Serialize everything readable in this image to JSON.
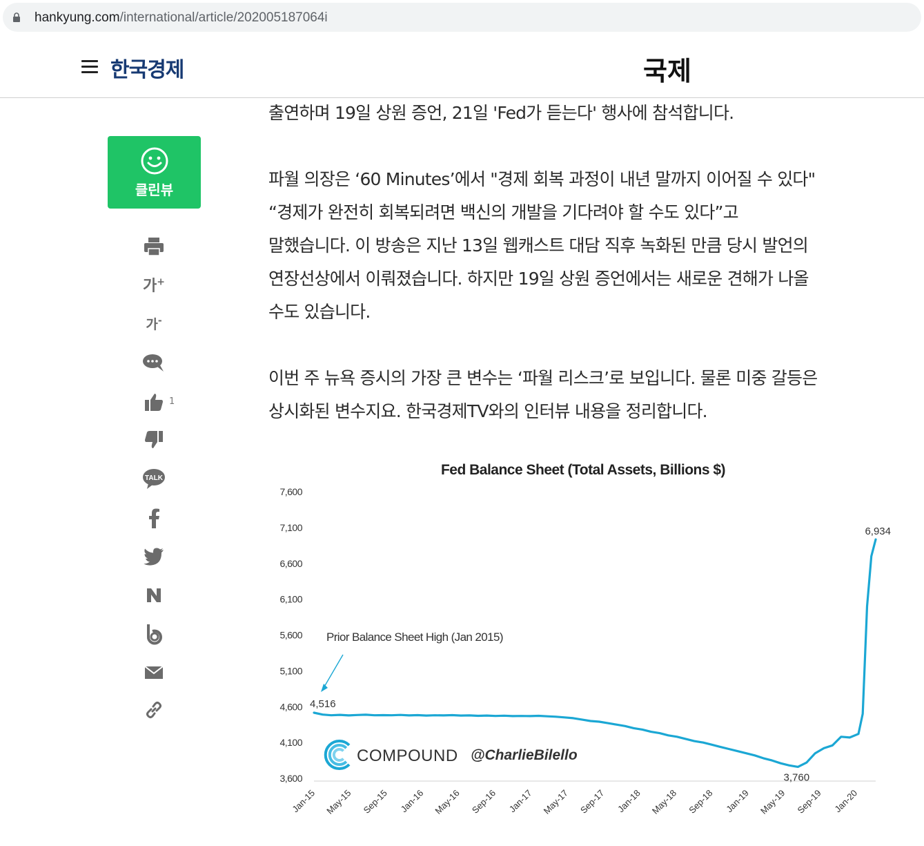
{
  "browser": {
    "url_host": "hankyung.com",
    "url_path": "/international/article/202005187064i"
  },
  "header": {
    "logo": "한국경제",
    "section": "국제"
  },
  "sidebar": {
    "clean_view_label": "클린뷰",
    "font_up_label": "가",
    "font_down_label": "가",
    "like_count": "1",
    "icons": [
      "print-icon",
      "font-increase-icon",
      "font-decrease-icon",
      "comment-icon",
      "thumbs-up-icon",
      "thumbs-down-icon",
      "kakaotalk-icon",
      "facebook-icon",
      "twitter-icon",
      "naver-icon",
      "band-icon",
      "mail-icon",
      "link-icon"
    ]
  },
  "article": {
    "p0": [
      "출연하며 19일 상원 증언, 21일 'Fed가 듣는다' 행사에 참석합니다."
    ],
    "p1": [
      "파월 의장은 ‘60 Minutes’에서 \"경제 회복 과정이 내년 말까지 이어질 수 있다\"",
      "“경제가 완전히 회복되려면 백신의 개발을 기다려야 할 수도 있다”고",
      "말했습니다. 이 방송은 지난 13일 웹캐스트 대담 직후 녹화된 만큼 당시 발언의",
      "연장선상에서 이뤄졌습니다. 하지만 19일 상원 증언에서는 새로운 견해가 나올",
      "수도 있습니다."
    ],
    "p2": [
      "이번 주 뉴욕 증시의 가장 큰 변수는 ‘파월 리스크’로 보입니다. 물론 미중 갈등은",
      "상시화된 변수지요. 한국경제TV와의 인터뷰 내용을 정리합니다."
    ]
  },
  "chart_data": {
    "type": "line",
    "title": "Fed Balance Sheet (Total Assets, Billions $)",
    "xlabel": "",
    "ylabel": "",
    "ylim": [
      3600,
      7600
    ],
    "yticks": [
      "7,600",
      "7,100",
      "6,600",
      "6,100",
      "5,600",
      "5,100",
      "4,600",
      "4,100",
      "3,600"
    ],
    "xticks": [
      "Jan-15",
      "May-15",
      "Sep-15",
      "Jan-16",
      "May-16",
      "Sep-16",
      "Jan-17",
      "May-17",
      "Sep-17",
      "Jan-18",
      "May-18",
      "Sep-18",
      "Jan-19",
      "May-19",
      "Sep-19",
      "Jan-20"
    ],
    "line_color": "#1ba7d4",
    "grid": false,
    "x": [
      0,
      1,
      2,
      3,
      4,
      5,
      6,
      7,
      8,
      9,
      10,
      11,
      12,
      13,
      14,
      15,
      16,
      17,
      18,
      19,
      20,
      21,
      22,
      23,
      24,
      25,
      26,
      27,
      28,
      29,
      30,
      31,
      32,
      33,
      34,
      35,
      36,
      37,
      38,
      39,
      40,
      41,
      42,
      43,
      44,
      45,
      46,
      47,
      48,
      49,
      50,
      51,
      52,
      53,
      54,
      55,
      56,
      57,
      58,
      59,
      60,
      61,
      62,
      63,
      63.5,
      64,
      64.5,
      65
    ],
    "values": [
      4516,
      4490,
      4480,
      4486,
      4478,
      4484,
      4488,
      4480,
      4482,
      4480,
      4485,
      4478,
      4482,
      4476,
      4480,
      4478,
      4482,
      4476,
      4478,
      4472,
      4476,
      4470,
      4474,
      4468,
      4470,
      4468,
      4472,
      4466,
      4460,
      4450,
      4440,
      4420,
      4400,
      4390,
      4370,
      4350,
      4330,
      4300,
      4280,
      4250,
      4230,
      4200,
      4180,
      4150,
      4120,
      4100,
      4070,
      4040,
      4010,
      3980,
      3950,
      3920,
      3880,
      3850,
      3810,
      3780,
      3760,
      3820,
      3950,
      4020,
      4060,
      4180,
      4170,
      4220,
      4500,
      6000,
      6700,
      6934
    ],
    "annotations": [
      {
        "text": "Prior Balance Sheet High (Jan 2015)"
      },
      {
        "text": "4,516"
      },
      {
        "text": "3,760"
      },
      {
        "text": "6,934"
      }
    ],
    "watermark": {
      "brand": "COMPOUND",
      "handle": "@CharlieBilello"
    }
  }
}
